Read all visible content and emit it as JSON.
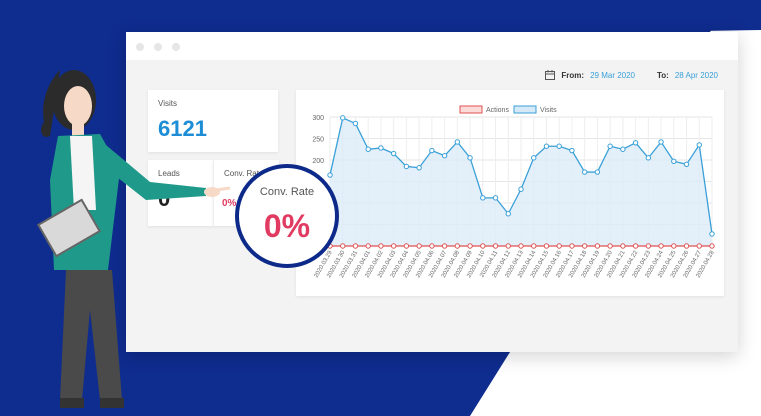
{
  "date_range": {
    "from_label": "From:",
    "from_value": "29 Mar 2020",
    "to_label": "To:",
    "to_value": "28 Apr 2020"
  },
  "cards": {
    "visits": {
      "label": "Visits",
      "value": "6121"
    },
    "leads": {
      "label": "Leads",
      "value": "0"
    },
    "conv_rate": {
      "label": "Conv. Rate",
      "value": "0%"
    }
  },
  "zoom": {
    "label": "Conv. Rate",
    "value": "0%"
  },
  "colors": {
    "brand_blue": "#0d2a8a",
    "visits": "#3aa0d8",
    "actions": "#e05252",
    "accent_red": "#e23b62"
  },
  "chart_data": {
    "type": "line",
    "x": [
      "2020.03.29",
      "2020.03.30",
      "2020.03.31",
      "2020.04.01",
      "2020.04.02",
      "2020.04.03",
      "2020.04.04",
      "2020.04.05",
      "2020.04.06",
      "2020.04.07",
      "2020.04.08",
      "2020.04.09",
      "2020.04.10",
      "2020.04.11",
      "2020.04.12",
      "2020.04.13",
      "2020.04.14",
      "2020.04.15",
      "2020.04.16",
      "2020.04.17",
      "2020.04.18",
      "2020.04.19",
      "2020.04.20",
      "2020.04.21",
      "2020.04.22",
      "2020.04.23",
      "2020.04.24",
      "2020.04.25",
      "2020.04.26",
      "2020.04.27",
      "2020.04.28"
    ],
    "series": [
      {
        "name": "Actions",
        "values": [
          0,
          0,
          0,
          0,
          0,
          0,
          0,
          0,
          0,
          0,
          0,
          0,
          0,
          0,
          0,
          0,
          0,
          0,
          0,
          0,
          0,
          0,
          0,
          0,
          0,
          0,
          0,
          0,
          0,
          0,
          0
        ]
      },
      {
        "name": "Visits",
        "values": [
          165,
          298,
          285,
          225,
          228,
          215,
          185,
          182,
          222,
          210,
          242,
          205,
          112,
          112,
          75,
          132,
          205,
          232,
          232,
          222,
          172,
          172,
          232,
          225,
          240,
          205,
          242,
          197,
          190,
          235,
          28
        ]
      }
    ],
    "ylim": [
      0,
      300
    ],
    "yticks": [
      0,
      50,
      100,
      150,
      200,
      250,
      300
    ],
    "legend_position": "top",
    "grid": true
  }
}
